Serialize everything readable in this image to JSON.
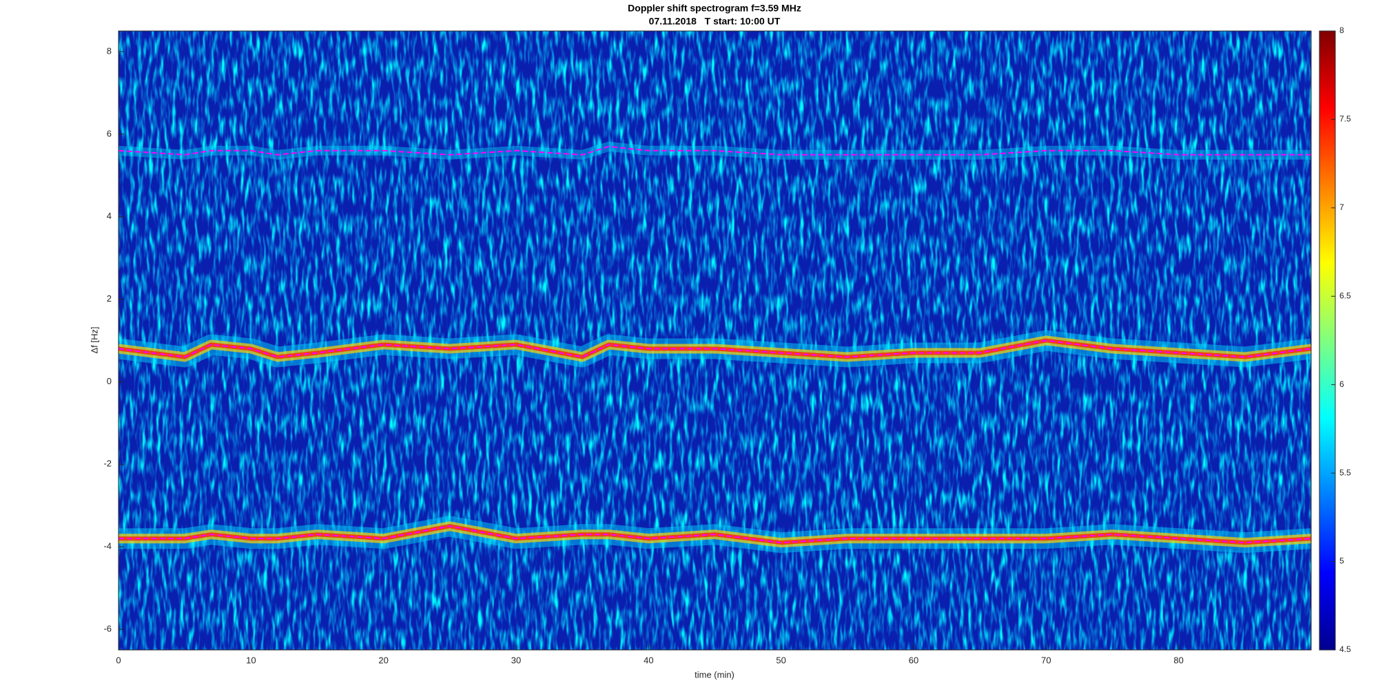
{
  "chart_data": {
    "type": "spectrogram",
    "title": "Doppler shift spectrogram f=3.59 MHz",
    "subtitle": "07.11.2018   T start: 10:00 UT",
    "xlabel": "time (min)",
    "ylabel": "Δf [Hz]",
    "xlim": [
      0,
      90
    ],
    "ylim": [
      -6.5,
      8.5
    ],
    "xticks": [
      0,
      10,
      20,
      30,
      40,
      50,
      60,
      70,
      80
    ],
    "yticks": [
      -6,
      -4,
      -2,
      0,
      2,
      4,
      6,
      8
    ],
    "x": [
      0,
      5,
      7,
      10,
      12,
      15,
      20,
      25,
      30,
      35,
      37,
      40,
      45,
      50,
      55,
      60,
      65,
      70,
      75,
      80,
      85,
      90
    ],
    "series": [
      {
        "color": "#ff00ff",
        "values": [
          5.6,
          5.5,
          5.6,
          5.6,
          5.5,
          5.6,
          5.6,
          5.5,
          5.6,
          5.5,
          5.7,
          5.6,
          5.6,
          5.5,
          5.5,
          5.5,
          5.5,
          5.6,
          5.6,
          5.5,
          5.5,
          5.5
        ]
      },
      {
        "color": "#ff00ff",
        "values": [
          0.8,
          0.6,
          0.9,
          0.8,
          0.6,
          0.7,
          0.9,
          0.8,
          0.9,
          0.6,
          0.9,
          0.8,
          0.8,
          0.7,
          0.6,
          0.7,
          0.7,
          1.0,
          0.8,
          0.7,
          0.6,
          0.8
        ]
      },
      {
        "color": "#ff00ff",
        "values": [
          -3.8,
          -3.8,
          -3.7,
          -3.8,
          -3.8,
          -3.7,
          -3.8,
          -3.5,
          -3.8,
          -3.7,
          -3.7,
          -3.8,
          -3.7,
          -3.9,
          -3.8,
          -3.8,
          -3.8,
          -3.8,
          -3.7,
          -3.8,
          -3.9,
          -3.8
        ]
      }
    ],
    "clim": [
      4.5,
      8
    ],
    "cticks": [
      4.5,
      5,
      5.5,
      6,
      6.5,
      7,
      7.5,
      8
    ]
  }
}
